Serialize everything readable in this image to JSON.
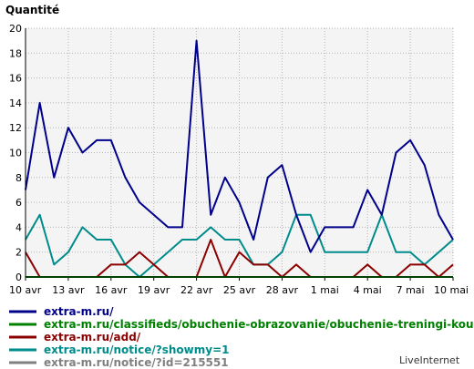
{
  "chart_data": {
    "type": "line",
    "ylabel": "Quantité",
    "ylim": [
      0,
      20
    ],
    "yticks": [
      "0",
      "2",
      "4",
      "6",
      "8",
      "10",
      "12",
      "14",
      "16",
      "18",
      "20"
    ],
    "x_tick_labels": [
      "10 avr",
      "13 avr",
      "16 avr",
      "19 avr",
      "22 avr",
      "25 avr",
      "28 avr",
      "1 mai",
      "4 mai",
      "7 mai",
      "10 mai"
    ],
    "x_tick_day_index": [
      0,
      3,
      6,
      9,
      12,
      15,
      18,
      21,
      24,
      27,
      30
    ],
    "x_count": 31,
    "grid": true,
    "legend_position": "bottom",
    "series": [
      {
        "name": "extra-m.ru/",
        "color": "#00008b",
        "values": [
          7,
          14,
          8,
          12,
          10,
          11,
          11,
          8,
          6,
          5,
          4,
          4,
          19,
          5,
          8,
          6,
          3,
          8,
          9,
          5,
          2,
          4,
          4,
          4,
          7,
          5,
          10,
          11,
          9,
          5,
          3
        ]
      },
      {
        "name": "extra-m.ru/classifieds/obuchenie-obrazovanie/obuchenie-treningi-kouching/",
        "color": "#008000",
        "values": [
          0,
          0,
          0,
          0,
          0,
          0,
          0,
          0,
          0,
          0,
          0,
          0,
          0,
          0,
          0,
          0,
          0,
          0,
          0,
          0,
          0,
          0,
          0,
          0,
          0,
          0,
          0,
          0,
          0,
          0,
          0
        ]
      },
      {
        "name": "extra-m.ru/add/",
        "color": "#8b0000",
        "values": [
          2,
          0,
          0,
          0,
          0,
          0,
          1,
          1,
          2,
          1,
          0,
          0,
          0,
          3,
          0,
          2,
          1,
          1,
          0,
          1,
          0,
          0,
          0,
          0,
          1,
          0,
          0,
          1,
          1,
          0,
          1
        ]
      },
      {
        "name": "extra-m.ru/notice/?showmy=1",
        "color": "#008b8b",
        "values": [
          3,
          5,
          1,
          2,
          4,
          3,
          3,
          1,
          0,
          1,
          2,
          3,
          3,
          4,
          3,
          3,
          1,
          1,
          2,
          5,
          5,
          2,
          2,
          2,
          2,
          5,
          2,
          2,
          1,
          2,
          3
        ]
      },
      {
        "name": "extra-m.ru/notice/?id=215551",
        "color": "#808080",
        "values": [
          0,
          0,
          0,
          0,
          0,
          0,
          0,
          0,
          0,
          0,
          0,
          0,
          0,
          0,
          0,
          0,
          0,
          0,
          0,
          0,
          0,
          0,
          0,
          0,
          0,
          0,
          0,
          0,
          0,
          0,
          0
        ]
      }
    ]
  },
  "branding": "LiveInternet"
}
